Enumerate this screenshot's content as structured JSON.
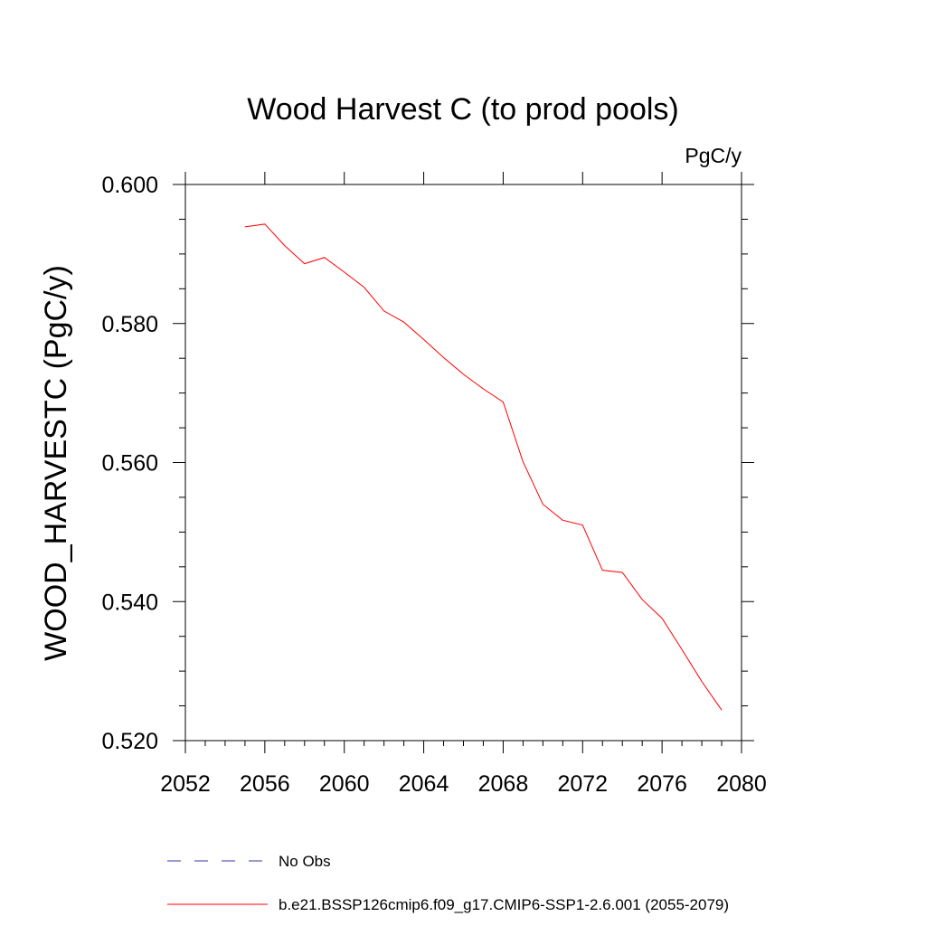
{
  "chart_data": {
    "type": "line",
    "title": "Wood Harvest C (to prod pools)",
    "units_label": "PgC/y",
    "ylabel": "WOOD_HARVESTC  (PgC/y)",
    "xlabel": "",
    "xlim": [
      2052,
      2080
    ],
    "ylim": [
      0.52,
      0.6
    ],
    "xticks": [
      2052,
      2056,
      2060,
      2064,
      2068,
      2072,
      2076,
      2080
    ],
    "xtick_labels": [
      "2052",
      "2056",
      "2060",
      "2064",
      "2068",
      "2072",
      "2076",
      "2080"
    ],
    "yticks": [
      0.52,
      0.54,
      0.56,
      0.58,
      0.6
    ],
    "ytick_labels": [
      "0.520",
      "0.540",
      "0.560",
      "0.580",
      "0.600"
    ],
    "legend_position": "bottom",
    "series": [
      {
        "name": "b.e21.BSSP126cmip6.f09_g17.CMIP6-SSP1-2.6.001 (2055-2079)",
        "color": "#ff0000",
        "style": "solid",
        "x": [
          2055,
          2056,
          2057,
          2058,
          2059,
          2060,
          2061,
          2062,
          2063,
          2064,
          2065,
          2066,
          2067,
          2068,
          2069,
          2070,
          2071,
          2072,
          2073,
          2074,
          2075,
          2076,
          2077,
          2078,
          2079
        ],
        "y": [
          0.5939,
          0.5943,
          0.5912,
          0.5886,
          0.5895,
          0.5874,
          0.5852,
          0.5818,
          0.5802,
          0.5777,
          0.5751,
          0.5727,
          0.5706,
          0.5687,
          0.5601,
          0.554,
          0.5517,
          0.551,
          0.5445,
          0.5442,
          0.5403,
          0.5376,
          0.5331,
          0.5285,
          0.5244
        ]
      },
      {
        "name": "No Obs",
        "color": "#3333aa",
        "style": "dashed",
        "x": [],
        "y": []
      }
    ]
  }
}
